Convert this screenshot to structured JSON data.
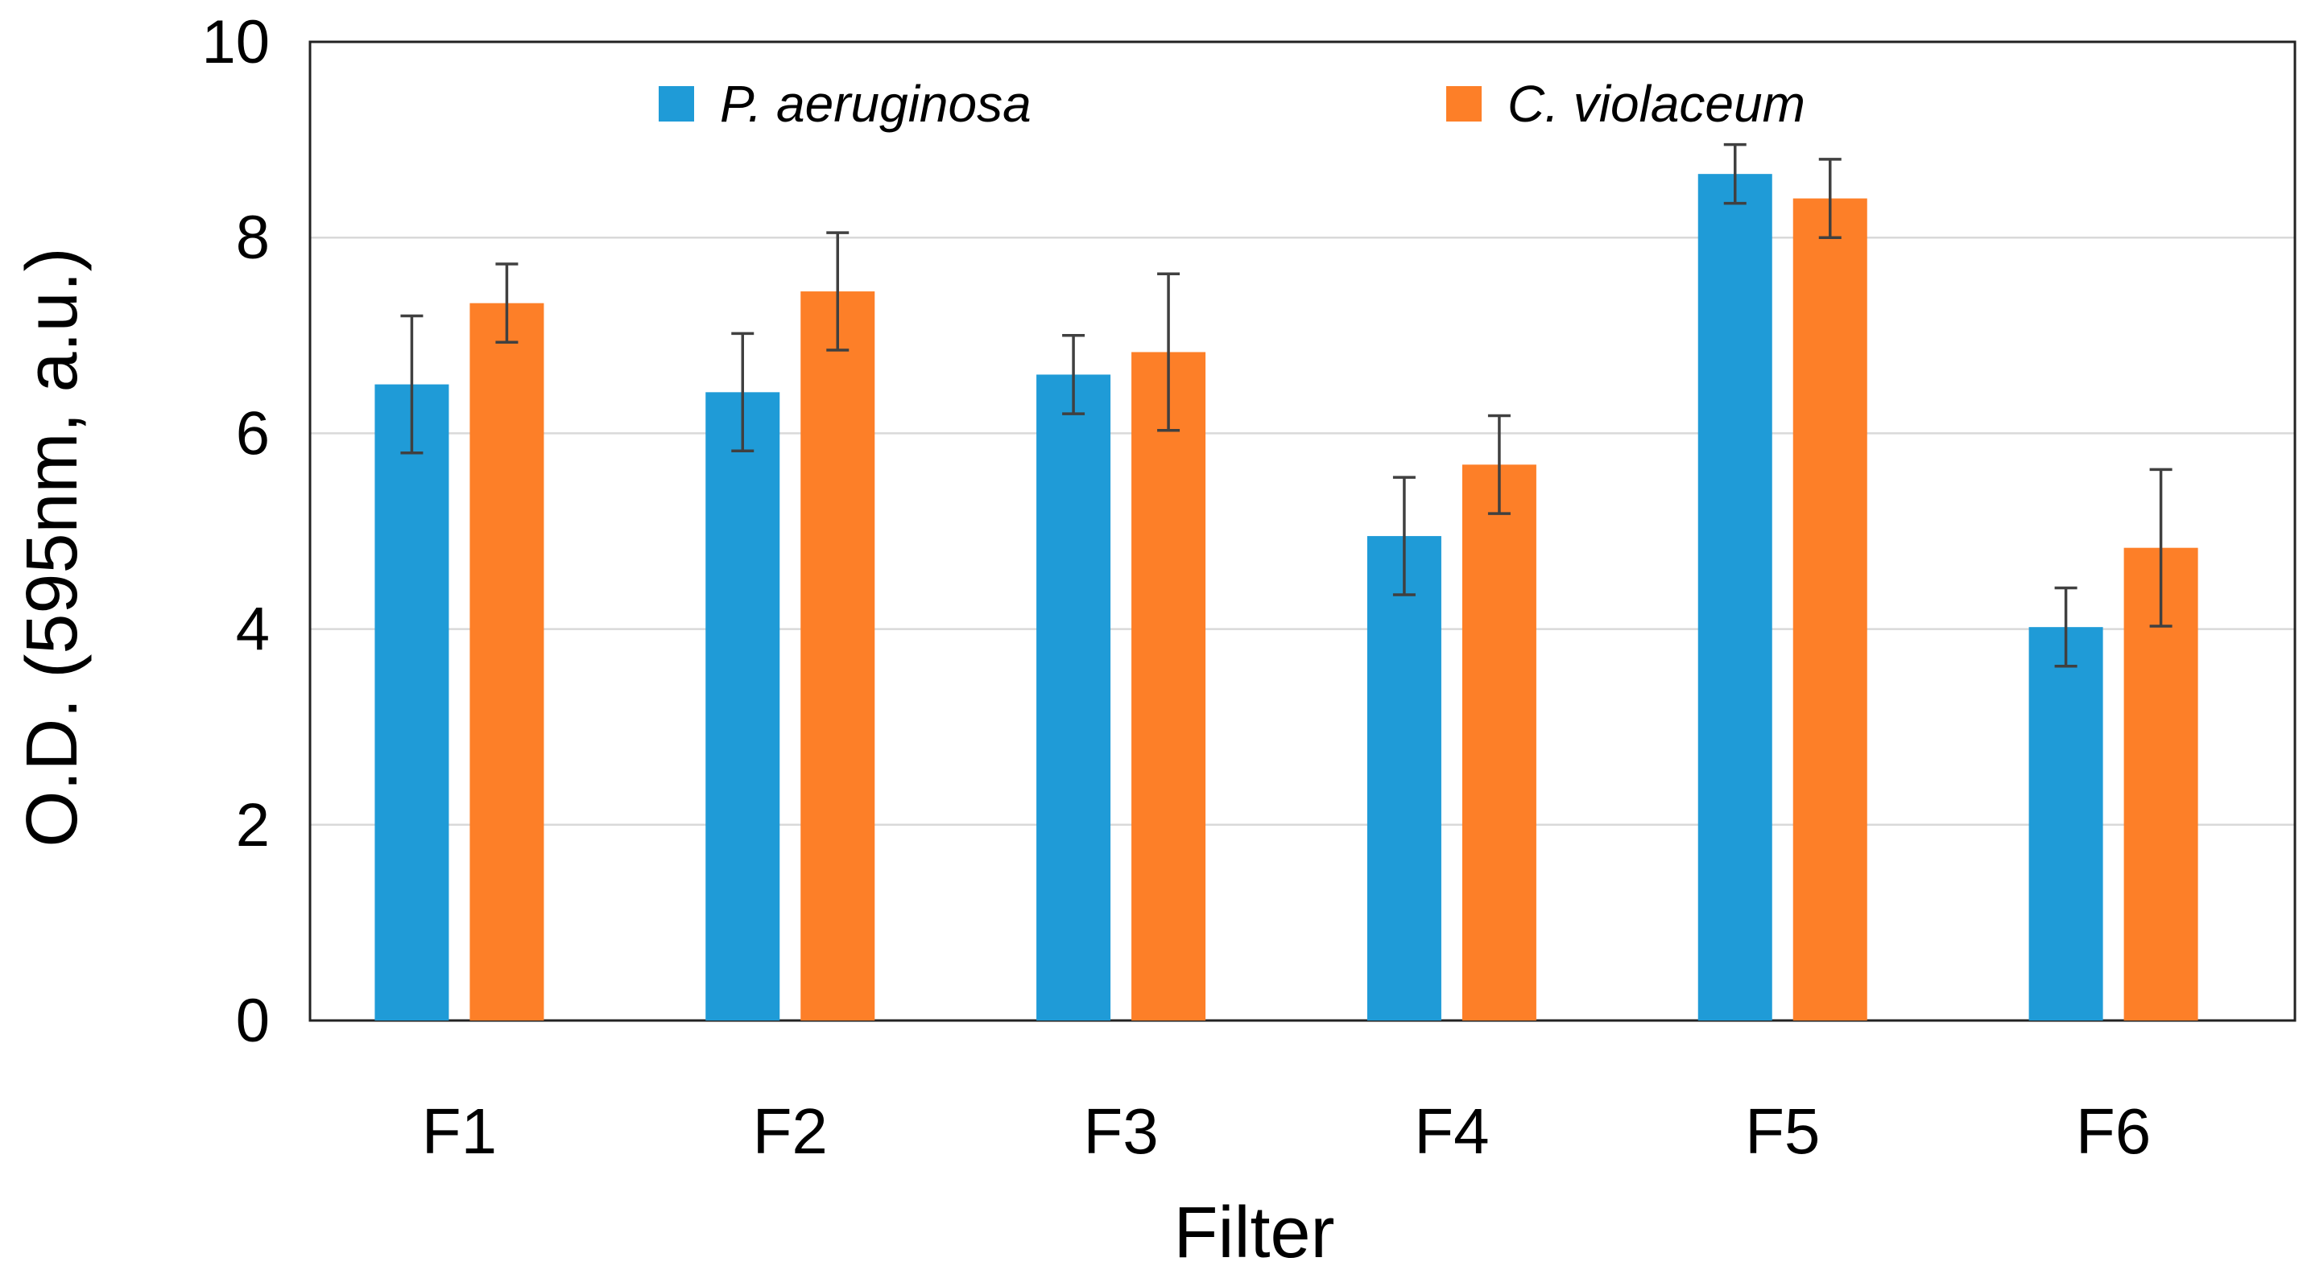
{
  "chart_data": {
    "type": "bar",
    "xlabel": "Filter",
    "ylabel": "O.D. (595nm, a.u.)",
    "ylim": [
      0,
      10
    ],
    "yticks": [
      0,
      2,
      4,
      6,
      8,
      10
    ],
    "grid": true,
    "legend_position": "top",
    "categories": [
      "F1",
      "F2",
      "F3",
      "F4",
      "F5",
      "F6"
    ],
    "series": [
      {
        "name": "P. aeruginosa",
        "color": "#1f9bd7",
        "values": [
          6.5,
          6.42,
          6.6,
          4.95,
          8.65,
          4.02
        ],
        "errors": [
          0.7,
          0.6,
          0.4,
          0.6,
          0.3,
          0.4
        ]
      },
      {
        "name": "C. violaceum",
        "color": "#fd7f28",
        "values": [
          7.33,
          7.45,
          6.83,
          5.68,
          8.4,
          4.83
        ],
        "errors": [
          0.4,
          0.6,
          0.8,
          0.5,
          0.4,
          0.8
        ]
      }
    ]
  }
}
